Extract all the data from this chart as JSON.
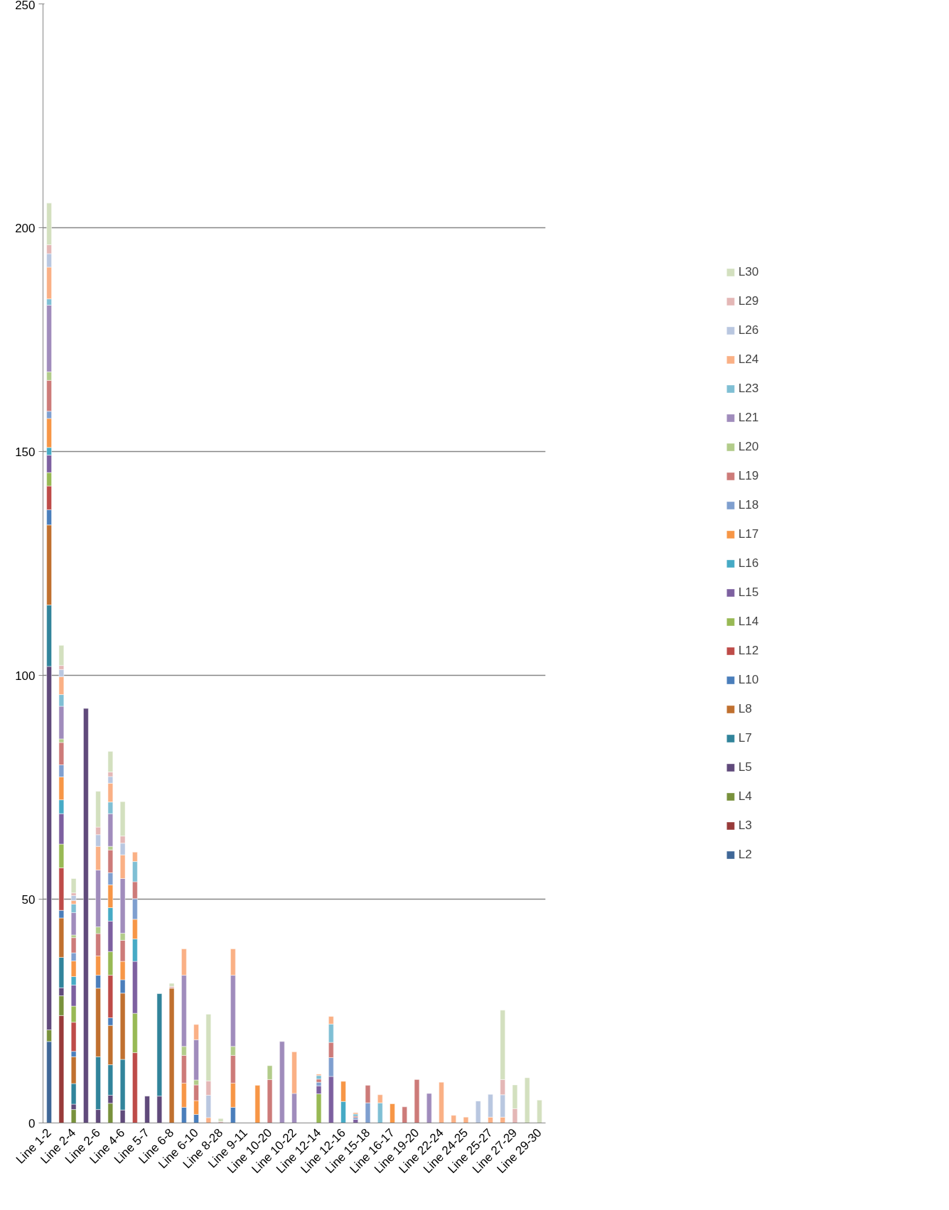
{
  "chart_data": {
    "type": "bar",
    "stacked": true,
    "legend": "right",
    "grid": "y",
    "ylim": [
      0,
      250
    ],
    "yticks": [
      0,
      50,
      100,
      150,
      200,
      250
    ],
    "categories": [
      "Line 1-2",
      null,
      "Line 2-4",
      null,
      "Line 2-6",
      null,
      "Line 4-6",
      null,
      "Line 5-7",
      null,
      "Line 6-8",
      null,
      "Line 6-10",
      null,
      "Line 8-28",
      null,
      "Line 9-11",
      null,
      "Line 10-20",
      null,
      "Line 10-22",
      null,
      "Line 12-14",
      null,
      "Line 12-16",
      null,
      "Line 15-18",
      null,
      "Line 16-17",
      null,
      "Line 19-20",
      null,
      "Line 22-24",
      null,
      "Line 24-25",
      null,
      "Line 25-27",
      null,
      "Line 27-29",
      null,
      "Line 29-30"
    ],
    "series": [
      {
        "name": "L2",
        "color": "#3f6797",
        "values": [
          18.2,
          null,
          null,
          null,
          null,
          null,
          null,
          null,
          null,
          null,
          null,
          null,
          null,
          null,
          null,
          null,
          null,
          null,
          null,
          null,
          null,
          null,
          null,
          null,
          null,
          null,
          null,
          null,
          null,
          null,
          null,
          null,
          null,
          null,
          null,
          null,
          null,
          null,
          null,
          null,
          null
        ]
      },
      {
        "name": "L3",
        "color": "#983b3a",
        "values": [
          null,
          24.0,
          null,
          null,
          null,
          null,
          null,
          null,
          null,
          null,
          null,
          null,
          null,
          null,
          null,
          null,
          null,
          null,
          null,
          null,
          null,
          null,
          null,
          null,
          null,
          null,
          null,
          null,
          null,
          null,
          null,
          null,
          null,
          null,
          null,
          null,
          null,
          null,
          null,
          null,
          null
        ]
      },
      {
        "name": "L4",
        "color": "#78913c",
        "values": [
          2.6,
          4.4,
          3.0,
          null,
          null,
          4.4,
          null,
          null,
          null,
          null,
          null,
          null,
          null,
          null,
          null,
          null,
          null,
          null,
          null,
          null,
          null,
          null,
          null,
          null,
          null,
          null,
          null,
          null,
          null,
          null,
          null,
          null,
          null,
          null,
          null,
          null,
          null,
          null,
          null,
          null,
          null
        ]
      },
      {
        "name": "L5",
        "color": "#604a7b",
        "values": [
          81.2,
          1.8,
          1.2,
          92.6,
          3.0,
          1.8,
          2.9,
          null,
          6.0,
          6.0,
          null,
          null,
          null,
          null,
          null,
          null,
          null,
          null,
          null,
          null,
          null,
          null,
          null,
          null,
          null,
          null,
          null,
          null,
          null,
          null,
          null,
          null,
          null,
          null,
          null,
          null,
          null,
          null,
          null,
          null,
          null
        ]
      },
      {
        "name": "L7",
        "color": "#31849b",
        "values": [
          13.7,
          6.8,
          4.6,
          null,
          11.8,
          6.8,
          11.3,
          null,
          null,
          22.9,
          null,
          null,
          null,
          null,
          null,
          null,
          null,
          null,
          null,
          null,
          null,
          null,
          null,
          null,
          null,
          null,
          null,
          null,
          null,
          null,
          null,
          null,
          null,
          null,
          null,
          null,
          null,
          null,
          null,
          null,
          null
        ]
      },
      {
        "name": "L8",
        "color": "#c0702f",
        "values": [
          17.9,
          8.8,
          6.0,
          null,
          15.3,
          8.8,
          14.8,
          null,
          null,
          null,
          30.1,
          null,
          null,
          null,
          null,
          null,
          null,
          null,
          null,
          null,
          null,
          null,
          null,
          null,
          null,
          null,
          null,
          null,
          null,
          null,
          null,
          null,
          null,
          null,
          null,
          null,
          null,
          null,
          null,
          null,
          null
        ]
      },
      {
        "name": "L10",
        "color": "#4a7ebb",
        "values": [
          3.4,
          1.7,
          1.2,
          null,
          2.9,
          1.7,
          3.0,
          null,
          null,
          null,
          null,
          3.5,
          1.9,
          null,
          null,
          3.5,
          null,
          null,
          null,
          null,
          null,
          null,
          null,
          null,
          null,
          null,
          null,
          null,
          null,
          null,
          null,
          null,
          null,
          null,
          null,
          null,
          null,
          null,
          null,
          null,
          null
        ]
      },
      {
        "name": "L12",
        "color": "#be4b48",
        "values": [
          5.3,
          9.5,
          6.5,
          null,
          null,
          9.5,
          null,
          15.7,
          null,
          null,
          null,
          null,
          null,
          null,
          null,
          null,
          null,
          null,
          null,
          null,
          null,
          null,
          null,
          null,
          null,
          null,
          null,
          null,
          null,
          null,
          null,
          null,
          null,
          null,
          null,
          null,
          null,
          null,
          null,
          null,
          null
        ]
      },
      {
        "name": "L14",
        "color": "#98b954",
        "values": [
          3.0,
          5.3,
          3.6,
          null,
          null,
          5.3,
          null,
          8.8,
          null,
          null,
          null,
          null,
          null,
          null,
          null,
          null,
          null,
          null,
          null,
          null,
          null,
          null,
          6.5,
          null,
          null,
          null,
          null,
          null,
          null,
          null,
          null,
          null,
          null,
          null,
          null,
          null,
          null,
          null,
          null,
          null,
          null
        ]
      },
      {
        "name": "L15",
        "color": "#7d60a0",
        "values": [
          3.9,
          6.8,
          4.7,
          null,
          null,
          6.8,
          null,
          11.6,
          null,
          null,
          null,
          null,
          null,
          null,
          null,
          null,
          null,
          null,
          null,
          null,
          null,
          null,
          1.8,
          10.4,
          null,
          0.8,
          null,
          null,
          null,
          null,
          null,
          null,
          null,
          null,
          null,
          null,
          null,
          null,
          null,
          null,
          null
        ]
      },
      {
        "name": "L16",
        "color": "#46aac5",
        "values": [
          1.7,
          3.1,
          1.9,
          null,
          null,
          3.0,
          null,
          5.0,
          null,
          null,
          null,
          null,
          null,
          null,
          null,
          null,
          null,
          null,
          null,
          null,
          null,
          null,
          null,
          null,
          4.8,
          null,
          null,
          null,
          null,
          null,
          null,
          null,
          null,
          null,
          null,
          null,
          null,
          null,
          null,
          null,
          null
        ]
      },
      {
        "name": "L17",
        "color": "#f79646",
        "values": [
          6.5,
          5.1,
          3.5,
          null,
          4.3,
          5.1,
          4.1,
          4.4,
          null,
          null,
          null,
          5.4,
          3.1,
          null,
          null,
          5.4,
          null,
          8.4,
          null,
          null,
          null,
          null,
          null,
          null,
          4.5,
          null,
          null,
          null,
          4.3,
          null,
          null,
          null,
          null,
          null,
          null,
          null,
          null,
          null,
          null,
          null,
          null
        ]
      },
      {
        "name": "L18",
        "color": "#7f9fcf",
        "values": [
          1.6,
          2.7,
          1.8,
          null,
          null,
          2.7,
          null,
          4.6,
          null,
          null,
          null,
          null,
          null,
          null,
          null,
          null,
          null,
          null,
          null,
          null,
          null,
          null,
          0.8,
          4.2,
          null,
          0.4,
          4.5,
          null,
          null,
          null,
          null,
          null,
          null,
          null,
          null,
          null,
          null,
          null,
          null,
          null,
          null
        ]
      },
      {
        "name": "L19",
        "color": "#cd7b79",
        "values": [
          6.9,
          5.0,
          3.4,
          null,
          5.0,
          5.1,
          4.7,
          3.8,
          null,
          null,
          null,
          6.2,
          3.5,
          null,
          null,
          6.2,
          null,
          null,
          9.7,
          null,
          null,
          null,
          0.7,
          3.4,
          null,
          0.3,
          3.9,
          null,
          null,
          3.6,
          9.7,
          null,
          null,
          null,
          null,
          null,
          null,
          null,
          null,
          null,
          null
        ]
      },
      {
        "name": "L20",
        "color": "#b2cc8a",
        "values": [
          1.9,
          0.8,
          0.6,
          null,
          1.5,
          0.8,
          1.6,
          null,
          null,
          null,
          null,
          2.0,
          1.1,
          null,
          null,
          2.0,
          null,
          null,
          3.1,
          null,
          null,
          null,
          null,
          null,
          null,
          null,
          null,
          null,
          null,
          null,
          null,
          null,
          null,
          null,
          null,
          null,
          null,
          null,
          null,
          null,
          null
        ]
      },
      {
        "name": "L21",
        "color": "#a08cbc",
        "values": [
          14.9,
          7.3,
          5.0,
          null,
          12.7,
          7.3,
          12.2,
          null,
          null,
          null,
          null,
          15.9,
          9.0,
          null,
          null,
          15.9,
          null,
          null,
          null,
          18.2,
          6.6,
          null,
          null,
          null,
          null,
          null,
          null,
          null,
          null,
          null,
          null,
          6.6,
          null,
          null,
          null,
          null,
          null,
          null,
          null,
          null,
          null
        ]
      },
      {
        "name": "L23",
        "color": "#7fbfd4",
        "values": [
          1.4,
          2.6,
          1.9,
          null,
          null,
          2.6,
          null,
          4.5,
          null,
          null,
          null,
          null,
          null,
          null,
          null,
          null,
          null,
          null,
          null,
          null,
          null,
          null,
          0.8,
          4.1,
          null,
          0.5,
          null,
          4.5,
          null,
          null,
          null,
          null,
          null,
          null,
          null,
          null,
          null,
          null,
          null,
          null,
          null
        ]
      },
      {
        "name": "L24",
        "color": "#fab085",
        "values": [
          7.1,
          4.0,
          0.8,
          null,
          5.3,
          4.2,
          5.3,
          2.1,
          null,
          null,
          null,
          5.9,
          3.4,
          1.2,
          null,
          5.9,
          null,
          null,
          null,
          null,
          9.3,
          null,
          0.3,
          1.7,
          null,
          0.3,
          null,
          1.8,
          null,
          null,
          null,
          null,
          9.1,
          1.7,
          1.3,
          null,
          1.3,
          1.3,
          null,
          null,
          null
        ]
      },
      {
        "name": "L26",
        "color": "#b9c7e0",
        "values": [
          3.0,
          1.6,
          1.1,
          null,
          2.6,
          1.5,
          2.6,
          null,
          null,
          null,
          null,
          null,
          null,
          5.0,
          null,
          null,
          null,
          null,
          null,
          null,
          null,
          null,
          null,
          null,
          null,
          null,
          null,
          null,
          null,
          null,
          null,
          null,
          null,
          null,
          null,
          4.9,
          5.1,
          5.0,
          null,
          null,
          null
        ]
      },
      {
        "name": "L29",
        "color": "#e4b7b6",
        "values": [
          2.0,
          0.9,
          0.6,
          null,
          1.7,
          1.0,
          1.6,
          null,
          null,
          null,
          0.4,
          null,
          null,
          3.2,
          0.3,
          null,
          null,
          null,
          null,
          null,
          null,
          null,
          null,
          null,
          null,
          null,
          null,
          null,
          null,
          null,
          null,
          null,
          null,
          null,
          null,
          null,
          null,
          3.4,
          3.2,
          null,
          null
        ]
      },
      {
        "name": "L30",
        "color": "#d3e0bf",
        "values": [
          9.3,
          4.5,
          3.2,
          null,
          8.0,
          4.6,
          7.7,
          null,
          null,
          null,
          0.7,
          null,
          null,
          14.9,
          0.7,
          null,
          null,
          null,
          null,
          null,
          null,
          null,
          null,
          null,
          null,
          null,
          null,
          null,
          null,
          null,
          null,
          null,
          null,
          null,
          null,
          null,
          null,
          15.5,
          5.3,
          10.1,
          5.1
        ]
      }
    ]
  }
}
